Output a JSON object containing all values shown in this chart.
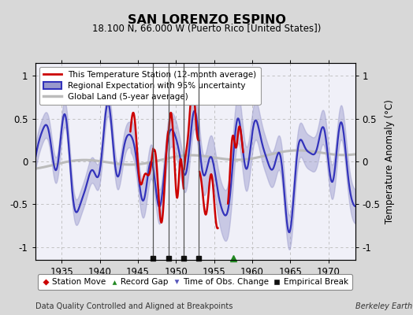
{
  "title": "SAN LORENZO ESPINO",
  "subtitle": "18.100 N, 66.000 W (Puerto Rico [United States])",
  "ylabel": "Temperature Anomaly (°C)",
  "xlabel_note": "Data Quality Controlled and Aligned at Breakpoints",
  "credit": "Berkeley Earth",
  "xlim": [
    1931.5,
    1973.5
  ],
  "ylim": [
    -1.15,
    1.15
  ],
  "yticks": [
    -1,
    -0.5,
    0,
    0.5,
    1
  ],
  "xticks": [
    1935,
    1940,
    1945,
    1950,
    1955,
    1960,
    1965,
    1970
  ],
  "bg_color": "#d8d8d8",
  "plot_bg_color": "#f0f0f8",
  "empirical_breaks": [
    1947.0,
    1949.0,
    1951.0,
    1953.0
  ],
  "record_gap": [
    1957.5
  ],
  "vertical_lines": [
    1947.0,
    1949.0,
    1951.0,
    1953.0
  ],
  "regional_color": "#3333bb",
  "regional_fill_color": "#9999cc",
  "station_color": "#cc0000",
  "global_color": "#bbbbbb",
  "legend_loc": "upper left"
}
